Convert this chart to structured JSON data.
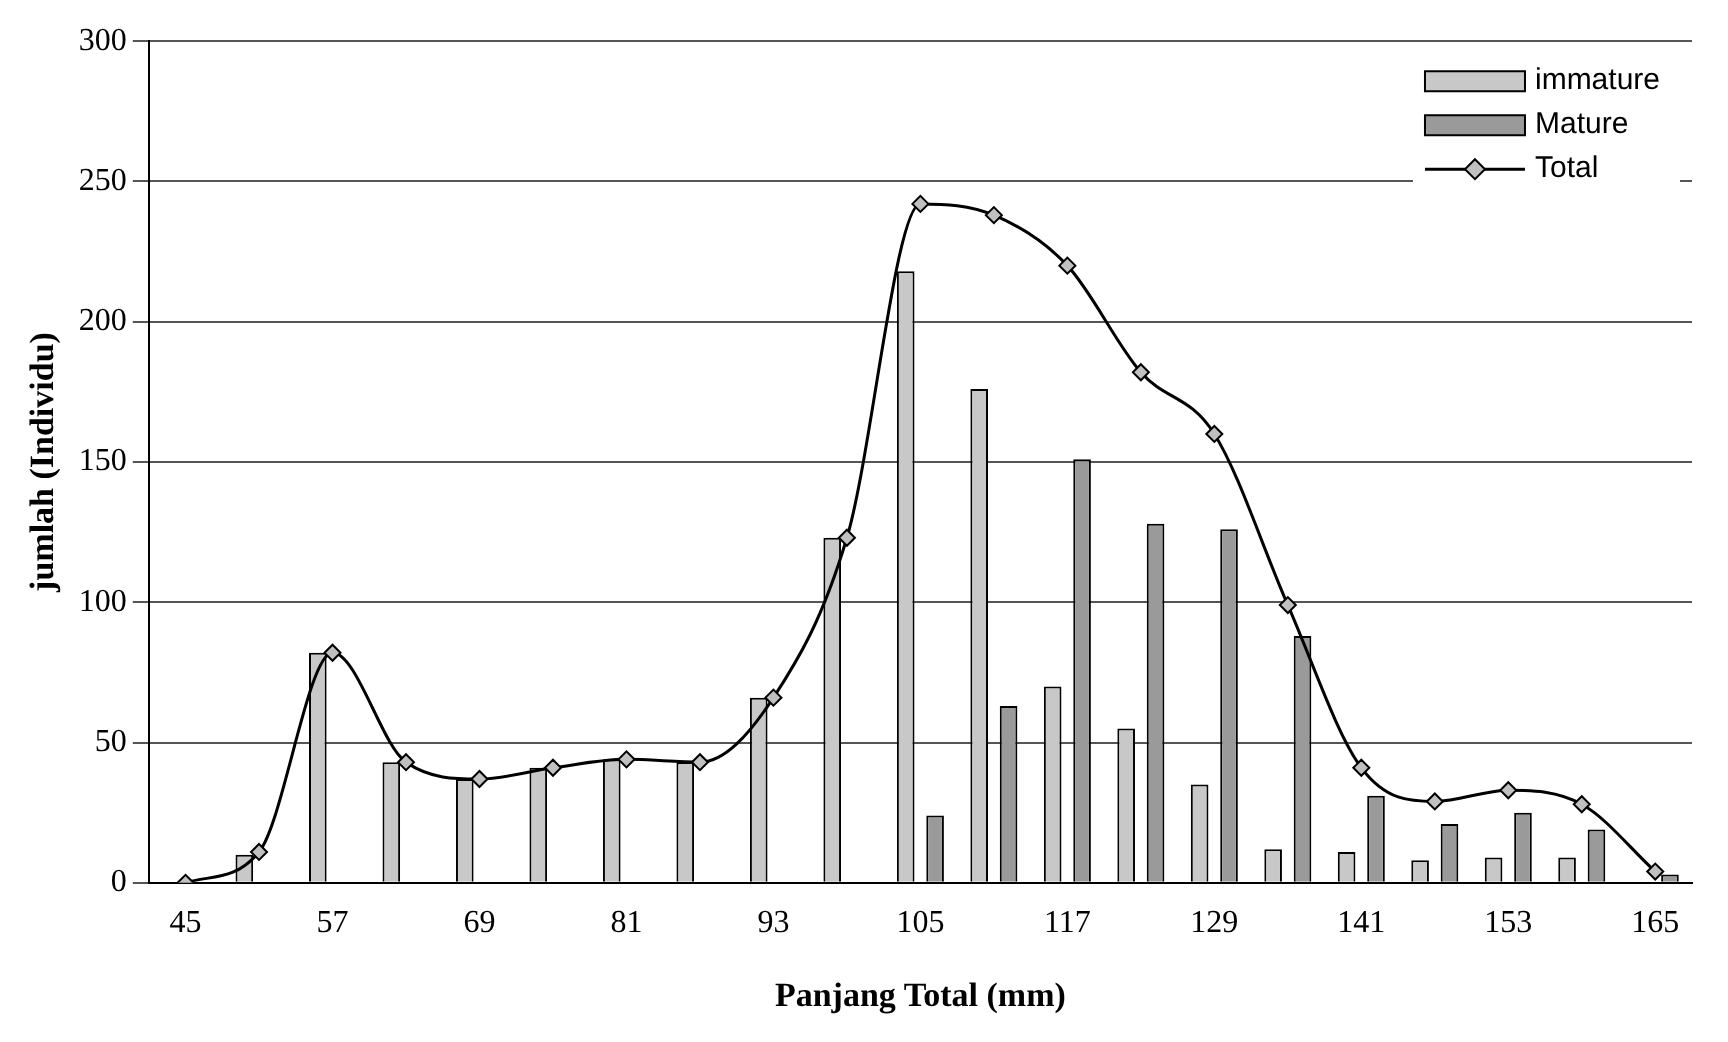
{
  "chart_data": {
    "type": "bar",
    "xlabel": "Panjang Total (mm)",
    "ylabel": "jumlah (Individu)",
    "categories": [
      "45",
      null,
      "57",
      null,
      "69",
      null,
      "81",
      null,
      "93",
      null,
      "105",
      null,
      "117",
      null,
      "129",
      null,
      "141",
      null,
      "153",
      null,
      "165"
    ],
    "series": [
      {
        "name": "immature",
        "color": "#c8c8c8",
        "values": [
          0,
          10,
          82,
          43,
          37,
          41,
          44,
          43,
          66,
          123,
          218,
          176,
          70,
          55,
          35,
          12,
          11,
          8,
          9,
          9,
          0
        ]
      },
      {
        "name": "Mature",
        "color": "#9a9a9a",
        "values": [
          0,
          0,
          0,
          0,
          0,
          0,
          0,
          0,
          0,
          0,
          24,
          63,
          151,
          128,
          126,
          88,
          31,
          21,
          25,
          19,
          3
        ]
      },
      {
        "name": "Total",
        "type": "line",
        "color": "#000000",
        "marker": "diamond",
        "values": [
          0,
          11,
          82,
          43,
          37,
          41,
          44,
          43,
          66,
          123,
          242,
          238,
          220,
          182,
          160,
          99,
          41,
          29,
          33,
          28,
          4
        ]
      }
    ],
    "ylim": [
      0,
      300
    ],
    "yticks": [
      0,
      50,
      100,
      150,
      200,
      250,
      300
    ],
    "grid": "y",
    "legend": "top right"
  }
}
